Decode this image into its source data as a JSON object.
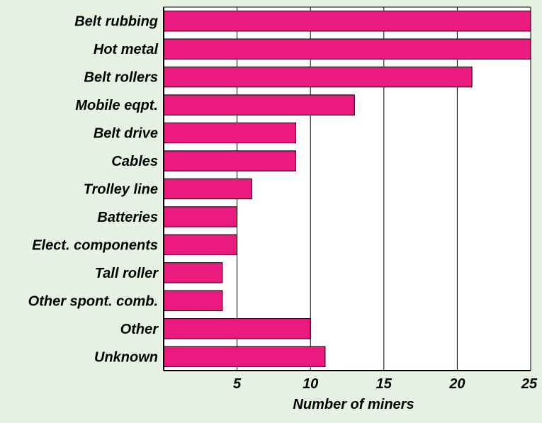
{
  "chart_data": {
    "type": "bar",
    "orientation": "horizontal",
    "categories": [
      "Belt rubbing",
      "Hot metal",
      "Belt rollers",
      "Mobile eqpt.",
      "Belt drive",
      "Cables",
      "Trolley line",
      "Batteries",
      "Elect. components",
      "Tall roller",
      "Other spont. comb.",
      "Other",
      "Unknown"
    ],
    "values": [
      25,
      25,
      21,
      13,
      9,
      9,
      6,
      5,
      5,
      4,
      4,
      10,
      11
    ],
    "xlabel": "Number of miners",
    "ylabel": "",
    "title": "",
    "xlim": [
      0,
      25
    ],
    "xticks": [
      5,
      10,
      15,
      20,
      25
    ],
    "grid": "vertical",
    "colors": {
      "bar": "#ea1a7f",
      "background": "#e5f2e2",
      "plot_background": "#ffffff",
      "gridline": "#000000"
    }
  }
}
